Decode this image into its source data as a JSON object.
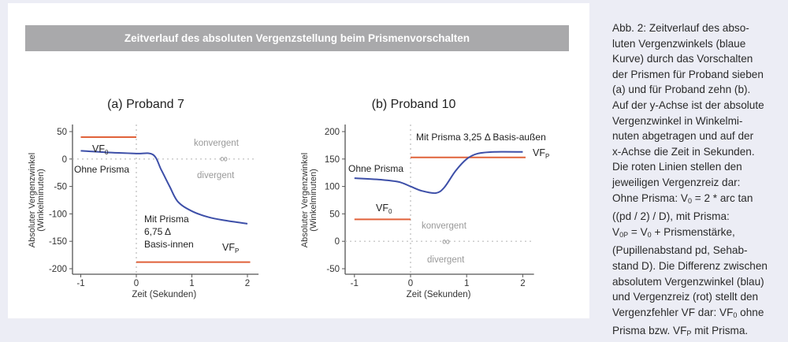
{
  "figure_title": "Zeitverlauf des absoluten Vergenzstellung beim Prismenvorschalten",
  "chart_data": [
    {
      "type": "line",
      "title": "(a) Proband 7",
      "xlabel": "Zeit (Sekunden)",
      "ylabel": [
        "Absoluter Vergenzwinkel",
        "(Winkelminuten)"
      ],
      "xlim": [
        -1.4,
        2.2
      ],
      "ylim": [
        -210,
        60
      ],
      "xticks": [
        -1,
        0,
        1,
        2
      ],
      "yticks": [
        50,
        0,
        -50,
        -100,
        -150,
        -200
      ],
      "series": [
        {
          "name": "Absoluter Vergenzwinkel",
          "color": "#3d4fa8",
          "x": [
            -1,
            -0.5,
            0,
            0.3,
            0.45,
            0.6,
            0.75,
            1.0,
            1.3,
            1.6,
            2.0
          ],
          "y": [
            15,
            12,
            10,
            8,
            -20,
            -50,
            -78,
            -95,
            -106,
            -112,
            -118
          ]
        }
      ],
      "stimulus": [
        {
          "name": "VF0 Vergenzreiz ohne Prisma",
          "color": "#e0623a",
          "x": [
            -1,
            0
          ],
          "y": 40
        },
        {
          "name": "VFP Vergenzreiz mit Prisma",
          "color": "#e0623a",
          "x": [
            0,
            2.05
          ],
          "y": -188
        }
      ],
      "annotations": {
        "vf0": "VF",
        "vf0_sub": "0",
        "vfp": "VF",
        "vfp_sub": "P",
        "ohne": "Ohne Prisma",
        "mit1": "Mit Prisma",
        "mit2": "6,75 Δ",
        "mit3": "Basis-innen",
        "konv": "konvergent",
        "inf": "∞",
        "div": "divergent"
      }
    },
    {
      "type": "line",
      "title": "(b) Proband 10",
      "xlabel": "Zeit (Sekunden)",
      "ylabel": [
        "Absoluter Vergenzwinkel",
        "(Winkelminuten)"
      ],
      "xlim": [
        -1.4,
        2.2
      ],
      "ylim": [
        -60,
        210
      ],
      "xticks": [
        -1,
        0,
        1,
        2
      ],
      "yticks": [
        200,
        150,
        100,
        50,
        0,
        -50
      ],
      "series": [
        {
          "name": "Absoluter Vergenzwinkel",
          "color": "#3d4fa8",
          "x": [
            -1,
            -0.5,
            -0.2,
            0,
            0.2,
            0.45,
            0.6,
            0.8,
            1.0,
            1.2,
            1.5,
            2.0
          ],
          "y": [
            115,
            112,
            108,
            100,
            92,
            88,
            98,
            128,
            150,
            160,
            163,
            163
          ]
        }
      ],
      "stimulus": [
        {
          "name": "VF0 Vergenzreiz ohne Prisma",
          "color": "#e0623a",
          "x": [
            -1,
            0
          ],
          "y": 40
        },
        {
          "name": "VFP Vergenzreiz mit Prisma",
          "color": "#e0623a",
          "x": [
            0,
            2.05
          ],
          "y": 153
        }
      ],
      "annotations": {
        "vf0": "VF",
        "vf0_sub": "0",
        "vfp": "VF",
        "vfp_sub": "P",
        "ohne": "Ohne Prisma",
        "mit1": "Mit Prisma 3,25 Δ Basis-außen",
        "konv": "konvergent",
        "inf": "∞",
        "div": "divergent"
      }
    }
  ],
  "caption": {
    "l1": "Abb. 2: Zeitverlauf des abso-",
    "l2": "luten Vergenzwinkels (blaue",
    "l3": "Kurve) durch das Vorschalten",
    "l4": "der Prismen für Proband sieben",
    "l5": "(a) und für Proband zehn (b).",
    "l6": "Auf der y-Achse ist der absolute",
    "l7": "Vergenzwinkel in Winkelmi-",
    "l8": "nuten abgetragen und auf der",
    "l9": "x-Achse die Zeit in Sekunden.",
    "l10": "Die roten Linien stellen den",
    "l11": "jeweiligen Vergenzreiz dar:",
    "l12a": "Ohne Prisma: V",
    "l12s": "0",
    "l12b": " = 2 * arc tan",
    "l13": "((pd / 2) / D), mit Prisma:",
    "l14a": "V",
    "l14s": "0P",
    "l14b": " = V",
    "l14s2": "0",
    "l14c": " + Prismenstärke,",
    "l15": "(Pupillenabstand pd, Sehab-",
    "l16": "stand D). Die Differenz zwischen",
    "l17": "absolutem Vergenzwinkel (blau)",
    "l18a": "und Vergenzreiz (rot) stellt den",
    "l19a": "Vergenzfehler VF dar: VF",
    "l19s": "0",
    "l19b": " ohne",
    "l20a": "Prisma bzw. VF",
    "l20s": "P",
    "l20b": " mit Prisma."
  }
}
